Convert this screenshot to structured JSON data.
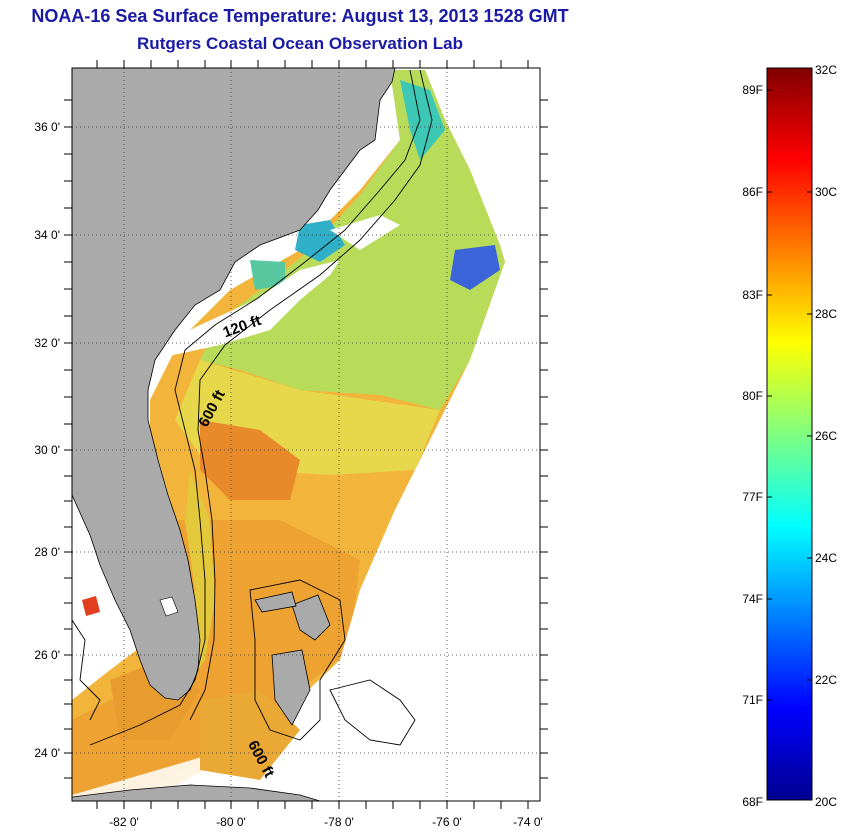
{
  "header": {
    "title": "NOAA-16 Sea Surface Temperature:  August 13, 2013 1528 GMT",
    "subtitle": "Rutgers Coastal Ocean Observation Lab"
  },
  "map": {
    "lat_labels": [
      "36 0'",
      "34 0'",
      "32 0'",
      "30 0'",
      "28 0'",
      "26 0'",
      "24 0'"
    ],
    "lon_labels": [
      "-82 0'",
      "-80 0'",
      "-78 0'",
      "-76 0'",
      "-74 0'"
    ],
    "isobath_labels": [
      "120 ft",
      "600 ft",
      "600 ft"
    ],
    "colors": {
      "land": "#aaaaaa",
      "coast": "#000000",
      "ocean_nodata": "#ffffff"
    }
  },
  "colorbar": {
    "f_labels": [
      "89F",
      "86F",
      "83F",
      "80F",
      "77F",
      "74F",
      "71F",
      "68F"
    ],
    "c_labels": [
      "32C",
      "30C",
      "28C",
      "26C",
      "24C",
      "22C",
      "20C"
    ],
    "stops": [
      "#00008f",
      "#0000ff",
      "#0080ff",
      "#00ffff",
      "#80ff80",
      "#ffff00",
      "#ff8000",
      "#ff0000",
      "#800000"
    ]
  }
}
